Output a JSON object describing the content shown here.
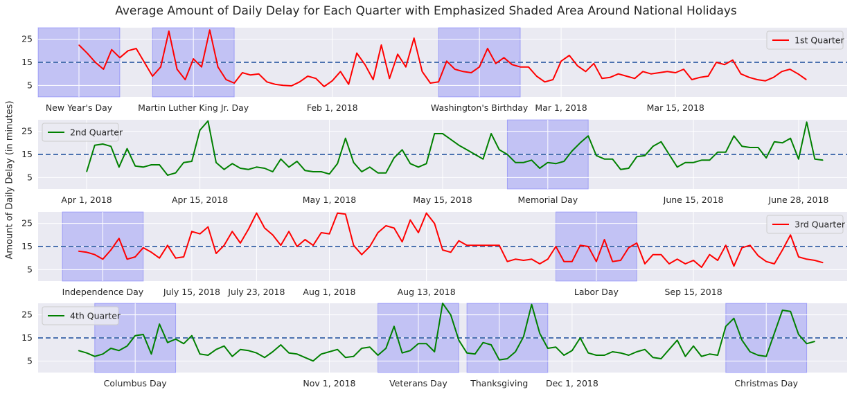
{
  "figure": {
    "title": "Average Amount of Daily Delay for Each Quarter with Emphasized Shaded Area Around National Holidays",
    "ylabel": "Amount of Daily Delay (in minutes)"
  },
  "colors": {
    "q1": "#ff0000",
    "q2": "#008000",
    "q3": "#ff0000",
    "q4": "#008000",
    "reference": "#4c72b0",
    "shade": "#0000ff",
    "background": "#eaeaf2"
  },
  "chart_data": [
    {
      "type": "line",
      "title": "",
      "legend": {
        "label": "1st Quarter",
        "position": "top-right"
      },
      "x_start": "2018-01-01",
      "x_range": [
        "2017-12-27",
        "2018-04-05"
      ],
      "ylim": [
        0,
        30
      ],
      "yticks": [
        5,
        15,
        25
      ],
      "reference_line": 15,
      "grid": true,
      "xtick_labels": [
        {
          "date": "2018-01-01",
          "label": "New Year's Day"
        },
        {
          "date": "2018-01-15",
          "label": "Martin Luther King Jr. Day"
        },
        {
          "date": "2018-02-01",
          "label": "Feb 1, 2018"
        },
        {
          "date": "2018-02-19",
          "label": "Washington's Birthday"
        },
        {
          "date": "2018-03-01",
          "label": "Mar 1, 2018"
        },
        {
          "date": "2018-03-15",
          "label": "Mar 15, 2018"
        }
      ],
      "shaded": [
        [
          "2017-12-27",
          "2018-01-06"
        ],
        [
          "2018-01-10",
          "2018-01-20"
        ],
        [
          "2018-02-14",
          "2018-02-24"
        ]
      ],
      "series": [
        {
          "name": "1st Quarter",
          "color": "#ff0000",
          "values": [
            22.5,
            19,
            15,
            12,
            20.5,
            17,
            20,
            21,
            15,
            9,
            13,
            28.5,
            12,
            7.5,
            16.5,
            13,
            29,
            13,
            7.5,
            6,
            10.5,
            9.5,
            10,
            6.5,
            5.5,
            5,
            4.8,
            6.5,
            9,
            8,
            4.5,
            7,
            11,
            5.5,
            19,
            14,
            7.5,
            22.5,
            8,
            18.5,
            13,
            25.5,
            11,
            6,
            6.5,
            15.5,
            12,
            11,
            10.5,
            13,
            21,
            14.5,
            17,
            14,
            13,
            13,
            9,
            6.5,
            7.5,
            15.5,
            18,
            13.5,
            11,
            14.5,
            8,
            8.5,
            10,
            9,
            8,
            11,
            10,
            10.5,
            11,
            10.5,
            12,
            7.5,
            8.5,
            9,
            15,
            14,
            16,
            10,
            8.5,
            7.5,
            7,
            8.5,
            11,
            12,
            10,
            7.5
          ]
        }
      ]
    },
    {
      "type": "line",
      "title": "",
      "legend": {
        "label": "2nd Quarter",
        "position": "top-left"
      },
      "x_start": "2018-04-01",
      "x_range": [
        "2018-03-26",
        "2018-07-04"
      ],
      "ylim": [
        0,
        30
      ],
      "yticks": [
        5,
        15,
        25
      ],
      "reference_line": 15,
      "grid": true,
      "xtick_labels": [
        {
          "date": "2018-04-01",
          "label": "Apr 1, 2018"
        },
        {
          "date": "2018-04-15",
          "label": "Apr 15, 2018"
        },
        {
          "date": "2018-05-01",
          "label": "May 1, 2018"
        },
        {
          "date": "2018-05-15",
          "label": "May 15, 2018"
        },
        {
          "date": "2018-05-28",
          "label": "Memorial Day"
        },
        {
          "date": "2018-06-15",
          "label": "June 15, 2018"
        },
        {
          "date": "2018-06-28",
          "label": "June 28, 2018"
        }
      ],
      "shaded": [
        [
          "2018-05-23",
          "2018-06-02"
        ]
      ],
      "series": [
        {
          "name": "2nd Quarter",
          "color": "#008000",
          "values": [
            7.5,
            19,
            19.5,
            18.5,
            9.5,
            17.5,
            10,
            9.5,
            10.5,
            10.5,
            6,
            7,
            11.5,
            12,
            25.5,
            29.5,
            11.5,
            8.5,
            11,
            9,
            8.5,
            9.5,
            9,
            7.5,
            13,
            9.5,
            12,
            8,
            7.5,
            7.5,
            6.5,
            11,
            22,
            11.5,
            7.5,
            9.5,
            7,
            7,
            13.5,
            17,
            11,
            9.5,
            11,
            24,
            24,
            21.5,
            19,
            17,
            15,
            13,
            24,
            17,
            15,
            11.5,
            11.5,
            12.5,
            9,
            11.5,
            11,
            12,
            16.5,
            20,
            23,
            14.5,
            13,
            13,
            8.5,
            9,
            14,
            14.5,
            18.5,
            20.5,
            15,
            9.5,
            11.5,
            11.5,
            12.5,
            12.5,
            16,
            16,
            23,
            18.5,
            18,
            18,
            13.5,
            20.5,
            20,
            22,
            13,
            29,
            13,
            12.5
          ]
        }
      ]
    },
    {
      "type": "line",
      "title": "",
      "legend": {
        "label": "3rd Quarter",
        "position": "top-right"
      },
      "x_start": "2018-07-01",
      "x_range": [
        "2018-06-26",
        "2018-10-04"
      ],
      "ylim": [
        0,
        30
      ],
      "yticks": [
        5,
        15,
        25
      ],
      "reference_line": 15,
      "grid": true,
      "xtick_labels": [
        {
          "date": "2018-07-04",
          "label": "Independence Day"
        },
        {
          "date": "2018-07-15",
          "label": "July 15, 2018"
        },
        {
          "date": "2018-07-23",
          "label": "July 23, 2018"
        },
        {
          "date": "2018-08-01",
          "label": "Aug 1, 2018"
        },
        {
          "date": "2018-08-13",
          "label": "Aug 13, 2018"
        },
        {
          "date": "2018-09-03",
          "label": "Labor Day"
        },
        {
          "date": "2018-09-15",
          "label": "Sep 15, 2018"
        }
      ],
      "shaded": [
        [
          "2018-06-29",
          "2018-07-09"
        ],
        [
          "2018-08-29",
          "2018-09-08"
        ]
      ],
      "series": [
        {
          "name": "3rd Quarter",
          "color": "#ff0000",
          "values": [
            13,
            12.5,
            11.5,
            9.5,
            13.5,
            18.5,
            9.5,
            10.5,
            14.5,
            12.5,
            10,
            15.5,
            10,
            10.5,
            21.5,
            20.5,
            23.5,
            12,
            15.5,
            21.5,
            16.5,
            22.5,
            29.5,
            23,
            20,
            15.5,
            21.5,
            15,
            18,
            15.5,
            21,
            20.5,
            29.5,
            29,
            15.5,
            11.5,
            15,
            21,
            24,
            23,
            17,
            26.5,
            21,
            29.5,
            25,
            13.5,
            12.5,
            17.5,
            15.5,
            15.5,
            15.5,
            15.5,
            15.5,
            8.5,
            9.5,
            9,
            9.5,
            7.5,
            9.5,
            15,
            8.5,
            8.5,
            15.5,
            15,
            8.5,
            18,
            8.5,
            9,
            14.5,
            16.5,
            7.5,
            11.5,
            11.5,
            7.5,
            9.5,
            7.5,
            9,
            6,
            11.5,
            9,
            15.5,
            6.5,
            14.5,
            15.5,
            11,
            8.5,
            7.5,
            13.5,
            20,
            10.5,
            9.5,
            9,
            8
          ]
        }
      ]
    },
    {
      "type": "line",
      "title": "",
      "legend": {
        "label": "4th Quarter",
        "position": "top-left"
      },
      "x_start": "2018-10-01",
      "x_range": [
        "2018-09-26",
        "2019-01-04"
      ],
      "ylim": [
        0,
        30
      ],
      "yticks": [
        5,
        15,
        25
      ],
      "reference_line": 15,
      "grid": true,
      "xtick_labels": [
        {
          "date": "2018-10-08",
          "label": "Columbus Day"
        },
        {
          "date": "2018-11-01",
          "label": "Nov 1, 2018"
        },
        {
          "date": "2018-11-12",
          "label": "Veterans Day"
        },
        {
          "date": "2018-11-22",
          "label": "Thanksgiving"
        },
        {
          "date": "2018-12-01",
          "label": "Dec 1, 2018"
        },
        {
          "date": "2018-12-25",
          "label": "Christmas Day"
        }
      ],
      "shaded": [
        [
          "2018-10-03",
          "2018-10-13"
        ],
        [
          "2018-11-07",
          "2018-11-17"
        ],
        [
          "2018-11-18",
          "2018-11-28"
        ],
        [
          "2018-12-20",
          "2018-12-30"
        ]
      ],
      "series": [
        {
          "name": "4th Quarter",
          "color": "#008000",
          "values": [
            9.5,
            8.5,
            7,
            8,
            10.5,
            9.5,
            11.5,
            16,
            16.5,
            8,
            21,
            13,
            14.5,
            12.5,
            16,
            8,
            7.5,
            10,
            11.5,
            7,
            10,
            9.5,
            8.5,
            6.5,
            9,
            12,
            8.5,
            8,
            6.5,
            5,
            8,
            9,
            10,
            6.5,
            7,
            10.5,
            11,
            7.5,
            10.5,
            20,
            8.5,
            9.5,
            12.5,
            12.5,
            9,
            30,
            25,
            14,
            8.5,
            8,
            13,
            12,
            5.5,
            6,
            9,
            15.5,
            29.5,
            17,
            10.5,
            11,
            7.5,
            9.5,
            15,
            8.5,
            7.5,
            7.5,
            9,
            8.5,
            7.5,
            9,
            10,
            6.5,
            6,
            10,
            14,
            7,
            11.5,
            7,
            8,
            7.5,
            20,
            23.5,
            14,
            9,
            7.5,
            7,
            17,
            27,
            26.5,
            16.5,
            12.5,
            13.5
          ]
        }
      ]
    }
  ]
}
